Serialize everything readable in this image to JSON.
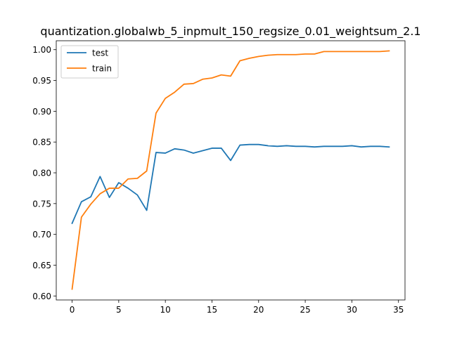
{
  "chart_data": {
    "type": "line",
    "title": "quantization.globalwb_5_inpmult_150_regsize_0.01_weightsum_2.1",
    "xlabel": "",
    "ylabel": "",
    "xlim": [
      -1.7,
      35.7
    ],
    "ylim": [
      0.5935,
      1.0145
    ],
    "x_ticks": [
      0,
      5,
      10,
      15,
      20,
      25,
      30,
      35
    ],
    "y_ticks": [
      0.6,
      0.65,
      0.7,
      0.75,
      0.8,
      0.85,
      0.9,
      0.95,
      1.0
    ],
    "y_tick_labels": [
      "0.60",
      "0.65",
      "0.70",
      "0.75",
      "0.80",
      "0.85",
      "0.90",
      "0.95",
      "1.00"
    ],
    "x": [
      0,
      1,
      2,
      3,
      4,
      5,
      6,
      7,
      8,
      9,
      10,
      11,
      12,
      13,
      14,
      15,
      16,
      17,
      18,
      19,
      20,
      21,
      22,
      23,
      24,
      25,
      26,
      27,
      28,
      29,
      30,
      31,
      32,
      33,
      34
    ],
    "grid": false,
    "legend_position": "upper-left",
    "series": [
      {
        "name": "test",
        "color": "#1f77b4",
        "values": [
          0.718,
          0.753,
          0.761,
          0.794,
          0.76,
          0.784,
          0.775,
          0.764,
          0.739,
          0.833,
          0.832,
          0.839,
          0.837,
          0.832,
          0.836,
          0.84,
          0.84,
          0.82,
          0.845,
          0.846,
          0.846,
          0.844,
          0.843,
          0.844,
          0.843,
          0.843,
          0.842,
          0.843,
          0.843,
          0.843,
          0.844,
          0.842,
          0.843,
          0.843,
          0.842
        ]
      },
      {
        "name": "train",
        "color": "#ff7f0e",
        "values": [
          0.611,
          0.728,
          0.749,
          0.766,
          0.775,
          0.775,
          0.79,
          0.791,
          0.803,
          0.897,
          0.921,
          0.931,
          0.944,
          0.945,
          0.952,
          0.954,
          0.959,
          0.957,
          0.982,
          0.986,
          0.989,
          0.991,
          0.992,
          0.992,
          0.992,
          0.993,
          0.993,
          0.997,
          0.997,
          0.997,
          0.997,
          0.997,
          0.997,
          0.997,
          0.998
        ]
      }
    ]
  }
}
